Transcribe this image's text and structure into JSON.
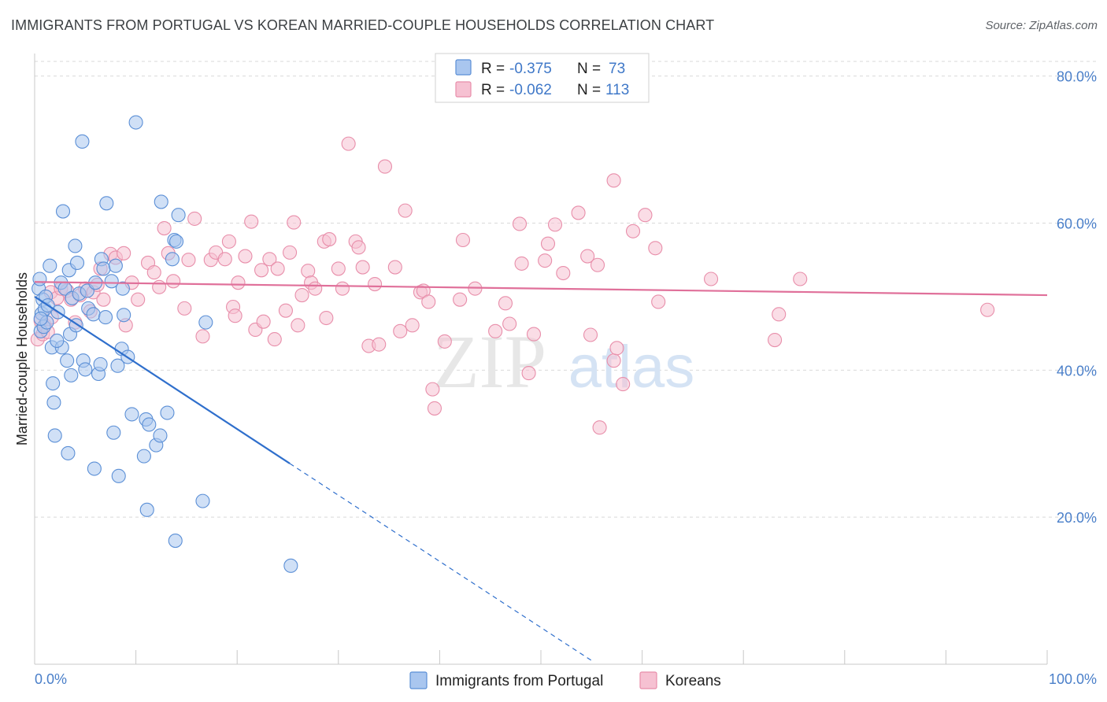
{
  "title": "IMMIGRANTS FROM PORTUGAL VS KOREAN MARRIED-COUPLE HOUSEHOLDS CORRELATION CHART",
  "source": "Source: ZipAtlas.com",
  "watermark": {
    "zip": "ZIP",
    "atlas": "atlas"
  },
  "colors": {
    "blue_fill": "#a9c6ef",
    "blue_stroke": "#5b8fd6",
    "blue_line": "#2f6fcc",
    "pink_fill": "#f6c1d2",
    "pink_stroke": "#e88eaa",
    "pink_line": "#e0709a",
    "grid": "#d9d9d9",
    "tick_label": "#4a7fc9"
  },
  "stats_box": {
    "rows": [
      {
        "series": "blue",
        "r_label": "R = ",
        "r_value": "-0.375",
        "n_label": "N = ",
        "n_value": "73"
      },
      {
        "series": "pink",
        "r_label": "R = ",
        "r_value": "-0.062",
        "n_label": "N = ",
        "n_value": "113"
      }
    ]
  },
  "chart_data": {
    "type": "scatter",
    "title": "IMMIGRANTS FROM PORTUGAL VS KOREAN MARRIED-COUPLE HOUSEHOLDS CORRELATION CHART",
    "xlabel": "",
    "ylabel": "Married-couple Households",
    "xlim": [
      0,
      100
    ],
    "ylim": [
      0,
      82
    ],
    "x_tick_labels": [
      {
        "value": 0,
        "label": "0.0%"
      },
      {
        "value": 100,
        "label": "100.0%"
      }
    ],
    "y_tick_labels": [
      {
        "value": 20,
        "label": "20.0%"
      },
      {
        "value": 40,
        "label": "40.0%"
      },
      {
        "value": 60,
        "label": "60.0%"
      },
      {
        "value": 80,
        "label": "80.0%"
      }
    ],
    "legend": [
      "Immigrants from Portugal",
      "Koreans"
    ],
    "series": [
      {
        "name": "Immigrants from Portugal",
        "color": "blue",
        "trend": {
          "x0": 0.0,
          "y0": 50.0,
          "x1": 25.2,
          "y1": 27.3,
          "dash_to_x": 55.0,
          "dash_to_y": 0.5
        },
        "points": [
          [
            0.4,
            51.1
          ],
          [
            0.5,
            52.4
          ],
          [
            0.6,
            45.3
          ],
          [
            0.7,
            47.7
          ],
          [
            0.8,
            49.6
          ],
          [
            0.9,
            45.9
          ],
          [
            1.0,
            48.3
          ],
          [
            1.1,
            50.0
          ],
          [
            1.2,
            46.5
          ],
          [
            1.5,
            54.2
          ],
          [
            1.7,
            43.1
          ],
          [
            1.8,
            38.2
          ],
          [
            1.9,
            35.6
          ],
          [
            2.0,
            31.1
          ],
          [
            2.3,
            47.9
          ],
          [
            2.6,
            51.9
          ],
          [
            2.7,
            43.1
          ],
          [
            2.8,
            61.6
          ],
          [
            3.0,
            51.1
          ],
          [
            3.2,
            41.3
          ],
          [
            3.3,
            28.7
          ],
          [
            3.4,
            53.6
          ],
          [
            3.5,
            44.9
          ],
          [
            3.6,
            39.3
          ],
          [
            3.7,
            49.8
          ],
          [
            4.0,
            56.9
          ],
          [
            4.1,
            46.1
          ],
          [
            4.2,
            54.6
          ],
          [
            4.4,
            50.4
          ],
          [
            4.7,
            71.1
          ],
          [
            4.8,
            41.3
          ],
          [
            5.0,
            40.1
          ],
          [
            5.2,
            50.8
          ],
          [
            5.3,
            48.4
          ],
          [
            5.8,
            47.6
          ],
          [
            5.9,
            26.6
          ],
          [
            6.0,
            51.9
          ],
          [
            6.3,
            39.5
          ],
          [
            6.5,
            40.8
          ],
          [
            6.6,
            55.1
          ],
          [
            6.8,
            53.8
          ],
          [
            7.0,
            47.2
          ],
          [
            7.1,
            62.7
          ],
          [
            7.6,
            52.1
          ],
          [
            7.8,
            31.5
          ],
          [
            8.0,
            54.2
          ],
          [
            8.2,
            40.6
          ],
          [
            8.3,
            25.6
          ],
          [
            8.6,
            42.9
          ],
          [
            8.7,
            51.1
          ],
          [
            8.8,
            47.5
          ],
          [
            9.2,
            41.8
          ],
          [
            9.6,
            34.0
          ],
          [
            10.0,
            73.7
          ],
          [
            10.8,
            28.3
          ],
          [
            11.0,
            33.3
          ],
          [
            11.1,
            21.0
          ],
          [
            11.3,
            32.6
          ],
          [
            12.0,
            29.8
          ],
          [
            12.4,
            31.1
          ],
          [
            12.5,
            62.9
          ],
          [
            13.1,
            34.2
          ],
          [
            13.6,
            55.1
          ],
          [
            13.8,
            57.7
          ],
          [
            13.9,
            16.8
          ],
          [
            14.0,
            57.5
          ],
          [
            14.2,
            61.1
          ],
          [
            16.6,
            22.2
          ],
          [
            16.9,
            46.5
          ],
          [
            25.3,
            13.4
          ],
          [
            1.3,
            48.8
          ],
          [
            2.2,
            44.0
          ],
          [
            0.6,
            47.0
          ]
        ]
      },
      {
        "name": "Koreans",
        "color": "pink",
        "trend": {
          "x0": 0.0,
          "y0": 52.0,
          "x1": 100.0,
          "y1": 50.2
        },
        "points": [
          [
            0.3,
            44.2
          ],
          [
            0.6,
            46.7
          ],
          [
            0.8,
            44.9
          ],
          [
            1.0,
            46.1
          ],
          [
            1.3,
            45.2
          ],
          [
            1.6,
            50.6
          ],
          [
            1.7,
            47.2
          ],
          [
            2.2,
            49.8
          ],
          [
            2.6,
            51.1
          ],
          [
            3.2,
            50.8
          ],
          [
            3.6,
            49.6
          ],
          [
            4.0,
            46.5
          ],
          [
            4.5,
            50.2
          ],
          [
            5.0,
            51.1
          ],
          [
            5.5,
            48.0
          ],
          [
            5.8,
            50.6
          ],
          [
            6.2,
            51.6
          ],
          [
            6.5,
            53.8
          ],
          [
            6.8,
            49.6
          ],
          [
            7.5,
            55.8
          ],
          [
            8.0,
            55.3
          ],
          [
            8.8,
            55.9
          ],
          [
            9.0,
            46.1
          ],
          [
            9.6,
            51.9
          ],
          [
            10.2,
            49.6
          ],
          [
            11.2,
            54.6
          ],
          [
            11.8,
            53.3
          ],
          [
            12.3,
            51.3
          ],
          [
            12.8,
            59.3
          ],
          [
            13.2,
            55.9
          ],
          [
            13.7,
            52.1
          ],
          [
            14.8,
            48.4
          ],
          [
            15.2,
            55.0
          ],
          [
            15.8,
            60.6
          ],
          [
            16.6,
            44.6
          ],
          [
            17.4,
            55.0
          ],
          [
            17.9,
            56.0
          ],
          [
            18.8,
            55.1
          ],
          [
            19.2,
            57.5
          ],
          [
            19.6,
            48.6
          ],
          [
            19.8,
            47.4
          ],
          [
            20.1,
            51.9
          ],
          [
            20.8,
            55.5
          ],
          [
            21.4,
            60.2
          ],
          [
            21.8,
            45.5
          ],
          [
            22.4,
            53.6
          ],
          [
            22.6,
            46.6
          ],
          [
            23.2,
            55.1
          ],
          [
            23.7,
            44.2
          ],
          [
            24.0,
            53.8
          ],
          [
            24.8,
            48.1
          ],
          [
            25.2,
            56.0
          ],
          [
            25.6,
            60.1
          ],
          [
            26.0,
            46.1
          ],
          [
            26.4,
            50.2
          ],
          [
            27.0,
            53.5
          ],
          [
            27.3,
            51.9
          ],
          [
            27.7,
            51.1
          ],
          [
            28.6,
            57.5
          ],
          [
            28.8,
            47.1
          ],
          [
            29.1,
            57.8
          ],
          [
            30.0,
            53.8
          ],
          [
            30.4,
            51.1
          ],
          [
            31.0,
            70.8
          ],
          [
            31.7,
            57.5
          ],
          [
            32.0,
            56.7
          ],
          [
            32.4,
            54.0
          ],
          [
            33.0,
            43.3
          ],
          [
            33.6,
            51.7
          ],
          [
            34.0,
            43.5
          ],
          [
            34.6,
            67.7
          ],
          [
            35.6,
            54.0
          ],
          [
            36.1,
            45.3
          ],
          [
            36.6,
            61.7
          ],
          [
            37.3,
            46.1
          ],
          [
            38.1,
            50.6
          ],
          [
            38.4,
            50.8
          ],
          [
            38.9,
            49.3
          ],
          [
            39.3,
            37.4
          ],
          [
            39.5,
            34.8
          ],
          [
            40.5,
            43.9
          ],
          [
            42.0,
            49.6
          ],
          [
            42.3,
            57.7
          ],
          [
            43.5,
            51.1
          ],
          [
            45.5,
            45.3
          ],
          [
            46.5,
            49.1
          ],
          [
            46.9,
            46.3
          ],
          [
            47.9,
            59.9
          ],
          [
            48.1,
            54.5
          ],
          [
            48.8,
            39.6
          ],
          [
            49.3,
            44.9
          ],
          [
            50.7,
            57.2
          ],
          [
            50.4,
            54.9
          ],
          [
            51.4,
            59.8
          ],
          [
            52.2,
            53.2
          ],
          [
            53.7,
            61.4
          ],
          [
            54.6,
            55.5
          ],
          [
            54.9,
            44.8
          ],
          [
            55.6,
            54.3
          ],
          [
            55.8,
            32.2
          ],
          [
            57.2,
            41.3
          ],
          [
            57.5,
            43.0
          ],
          [
            58.1,
            38.1
          ],
          [
            57.2,
            65.8
          ],
          [
            59.1,
            58.9
          ],
          [
            60.3,
            61.1
          ],
          [
            61.3,
            56.6
          ],
          [
            61.6,
            49.3
          ],
          [
            66.8,
            52.4
          ],
          [
            73.1,
            44.1
          ],
          [
            73.5,
            47.6
          ],
          [
            75.6,
            52.4
          ],
          [
            94.1,
            48.2
          ]
        ]
      }
    ]
  }
}
